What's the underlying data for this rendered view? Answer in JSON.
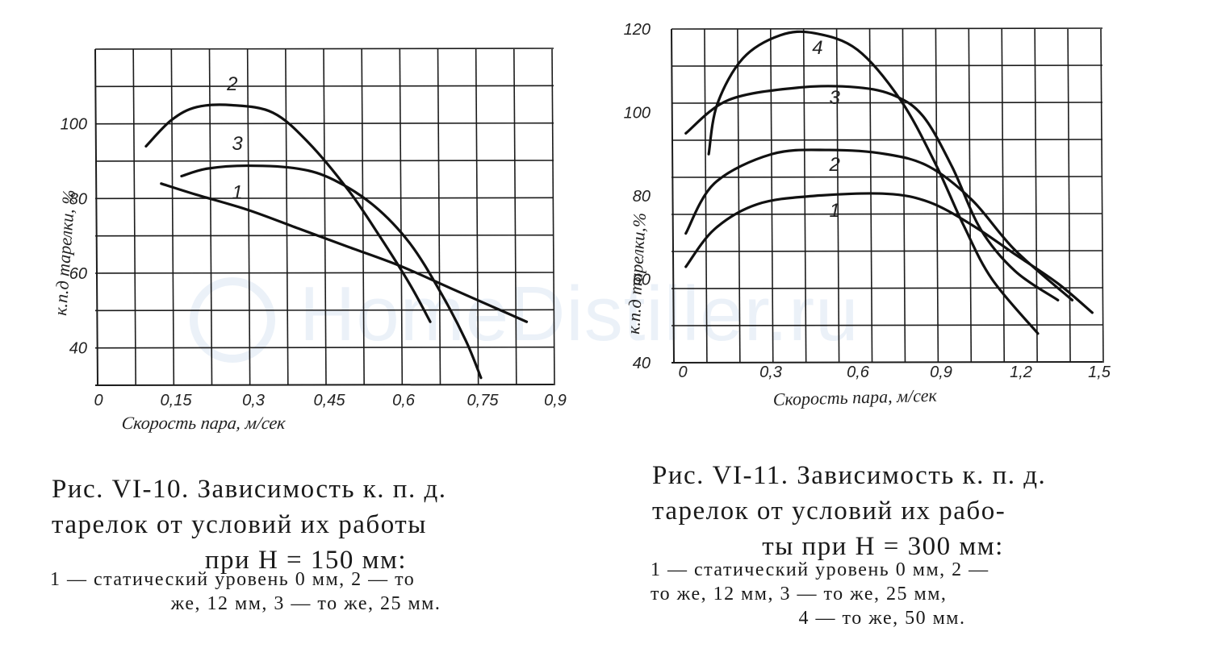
{
  "watermark": "HomeDistiller.ru",
  "chart_data": [
    {
      "type": "line",
      "title": "",
      "xlabel": "Скорость пара,  м/сек",
      "ylabel": "к.п.д тарелки, %",
      "xlim": [
        0,
        0.9
      ],
      "ylim": [
        30,
        120
      ],
      "x_ticks": [
        "0",
        "0,15",
        "0,3",
        "0,45",
        "0,6",
        "0,75",
        "0,9"
      ],
      "y_ticks": [
        "40",
        "60",
        "80",
        "100"
      ],
      "y_tick_values": [
        40,
        60,
        80,
        100
      ],
      "grid": true,
      "series": [
        {
          "name": "1",
          "x": [
            0.13,
            0.2,
            0.3,
            0.4,
            0.5,
            0.6,
            0.7,
            0.85
          ],
          "y": [
            84,
            81,
            77,
            72,
            67,
            62,
            56,
            47
          ]
        },
        {
          "name": "2",
          "x": [
            0.1,
            0.15,
            0.2,
            0.27,
            0.35,
            0.42,
            0.5,
            0.56,
            0.62,
            0.66
          ],
          "y": [
            94,
            101,
            104.5,
            105,
            103,
            95,
            82,
            70,
            57,
            47
          ]
        },
        {
          "name": "3",
          "x": [
            0.17,
            0.22,
            0.3,
            0.4,
            0.47,
            0.55,
            0.62,
            0.68,
            0.73,
            0.76
          ],
          "y": [
            86,
            88,
            88.8,
            88,
            85,
            78,
            68,
            55,
            42,
            32
          ]
        }
      ]
    },
    {
      "type": "line",
      "title": "",
      "xlabel": "Скорость пара,   м/сек",
      "ylabel": "к.п.д тарелки,%",
      "xlim": [
        0,
        1.5
      ],
      "ylim": [
        40,
        120
      ],
      "x_ticks": [
        "0",
        "0,3",
        "0,6",
        "0,9",
        "1,2",
        "1,5"
      ],
      "y_ticks": [
        "40",
        "60",
        "80",
        "100",
        "120"
      ],
      "y_tick_values": [
        40,
        60,
        80,
        100,
        120
      ],
      "grid": true,
      "series": [
        {
          "name": "1",
          "x": [
            0.05,
            0.15,
            0.3,
            0.5,
            0.75,
            0.9,
            1.05,
            1.2,
            1.35,
            1.47
          ],
          "y": [
            63,
            72,
            78,
            80,
            80.5,
            78.5,
            73,
            66,
            59,
            52
          ]
        },
        {
          "name": "2",
          "x": [
            0.05,
            0.15,
            0.35,
            0.55,
            0.75,
            0.9,
            1.05,
            1.2,
            1.4
          ],
          "y": [
            71,
            83,
            90,
            91,
            90,
            87,
            79,
            67,
            55
          ]
        },
        {
          "name": "3",
          "x": [
            0.05,
            0.2,
            0.45,
            0.65,
            0.78,
            0.88,
            0.98,
            1.08,
            1.2,
            1.35
          ],
          "y": [
            95,
            103,
            106,
            106,
            104,
            99,
            87,
            72,
            62,
            55
          ]
        },
        {
          "name": "4",
          "x": [
            0.13,
            0.16,
            0.25,
            0.38,
            0.5,
            0.65,
            0.8,
            0.92,
            1.02,
            1.12,
            1.28
          ],
          "y": [
            90,
            102,
            113,
            118.5,
            119,
            115,
            103,
            88,
            73,
            60,
            47
          ]
        }
      ]
    }
  ],
  "captions": {
    "fig1": {
      "line1": "Рис.   VI-10.   Зависимость   к. п. д.",
      "line2": "тарелок   от   условий   их   работы",
      "line3": "при  H = 150  мм:",
      "sub1": "1 — статический  уровень  0  мм,  2 — то",
      "sub2": "же,  12  мм,  3 — то  же,  25  мм."
    },
    "fig2": {
      "line1": "Рис. VI-11. Зависимость к. п. д.",
      "line2": "тарелок  от  условий  их  рабо-",
      "line3": "ты  при  H = 300  мм:",
      "sub1": "1 — статический  уровень  0  мм,  2 —",
      "sub2": "то  же,  12  мм,   3 — то  же,  25  мм,",
      "sub3": "4 — то  же,  50  мм."
    }
  }
}
